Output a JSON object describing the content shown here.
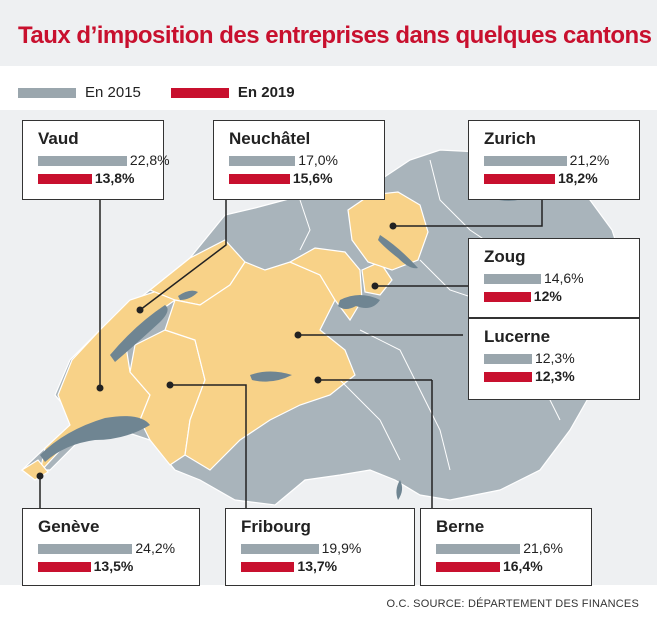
{
  "title": "Taux d’imposition des entreprises dans quelques cantons",
  "legend": {
    "y2015": "En 2015",
    "y2019": "En 2019"
  },
  "colors": {
    "y2015": "#9aa6ad",
    "y2019": "#c8102e",
    "highlight": "#f8d288",
    "land": "#a9b4bb",
    "lakes": "#6f8592"
  },
  "source": "O.C. SOURCE: DÉPARTEMENT DES FINANCES",
  "chart_data": {
    "type": "bar",
    "title": "Taux d’imposition des entreprises dans quelques cantons",
    "series_names": [
      "En 2015",
      "En 2019"
    ],
    "unit": "%",
    "cantons": [
      {
        "name": "Vaud",
        "v2015": 22.8,
        "v2019": 13.8,
        "l2015": "22,8%",
        "l2019": "13,8%"
      },
      {
        "name": "Neuchâtel",
        "v2015": 17.0,
        "v2019": 15.6,
        "l2015": "17,0%",
        "l2019": "15,6%"
      },
      {
        "name": "Zurich",
        "v2015": 21.2,
        "v2019": 18.2,
        "l2015": "21,2%",
        "l2019": "18,2%"
      },
      {
        "name": "Zoug",
        "v2015": 14.6,
        "v2019": 12,
        "l2015": "14,6%",
        "l2019": "12%"
      },
      {
        "name": "Lucerne",
        "v2015": 12.3,
        "v2019": 12.3,
        "l2015": "12,3%",
        "l2019": "12,3%"
      },
      {
        "name": "Genève",
        "v2015": 24.2,
        "v2019": 13.5,
        "l2015": "24,2%",
        "l2019": "13,5%"
      },
      {
        "name": "Fribourg",
        "v2015": 19.9,
        "v2019": 13.7,
        "l2015": "19,9%",
        "l2019": "13,7%"
      },
      {
        "name": "Berne",
        "v2015": 21.6,
        "v2019": 16.4,
        "l2015": "21,6%",
        "l2019": "16,4%"
      }
    ]
  }
}
